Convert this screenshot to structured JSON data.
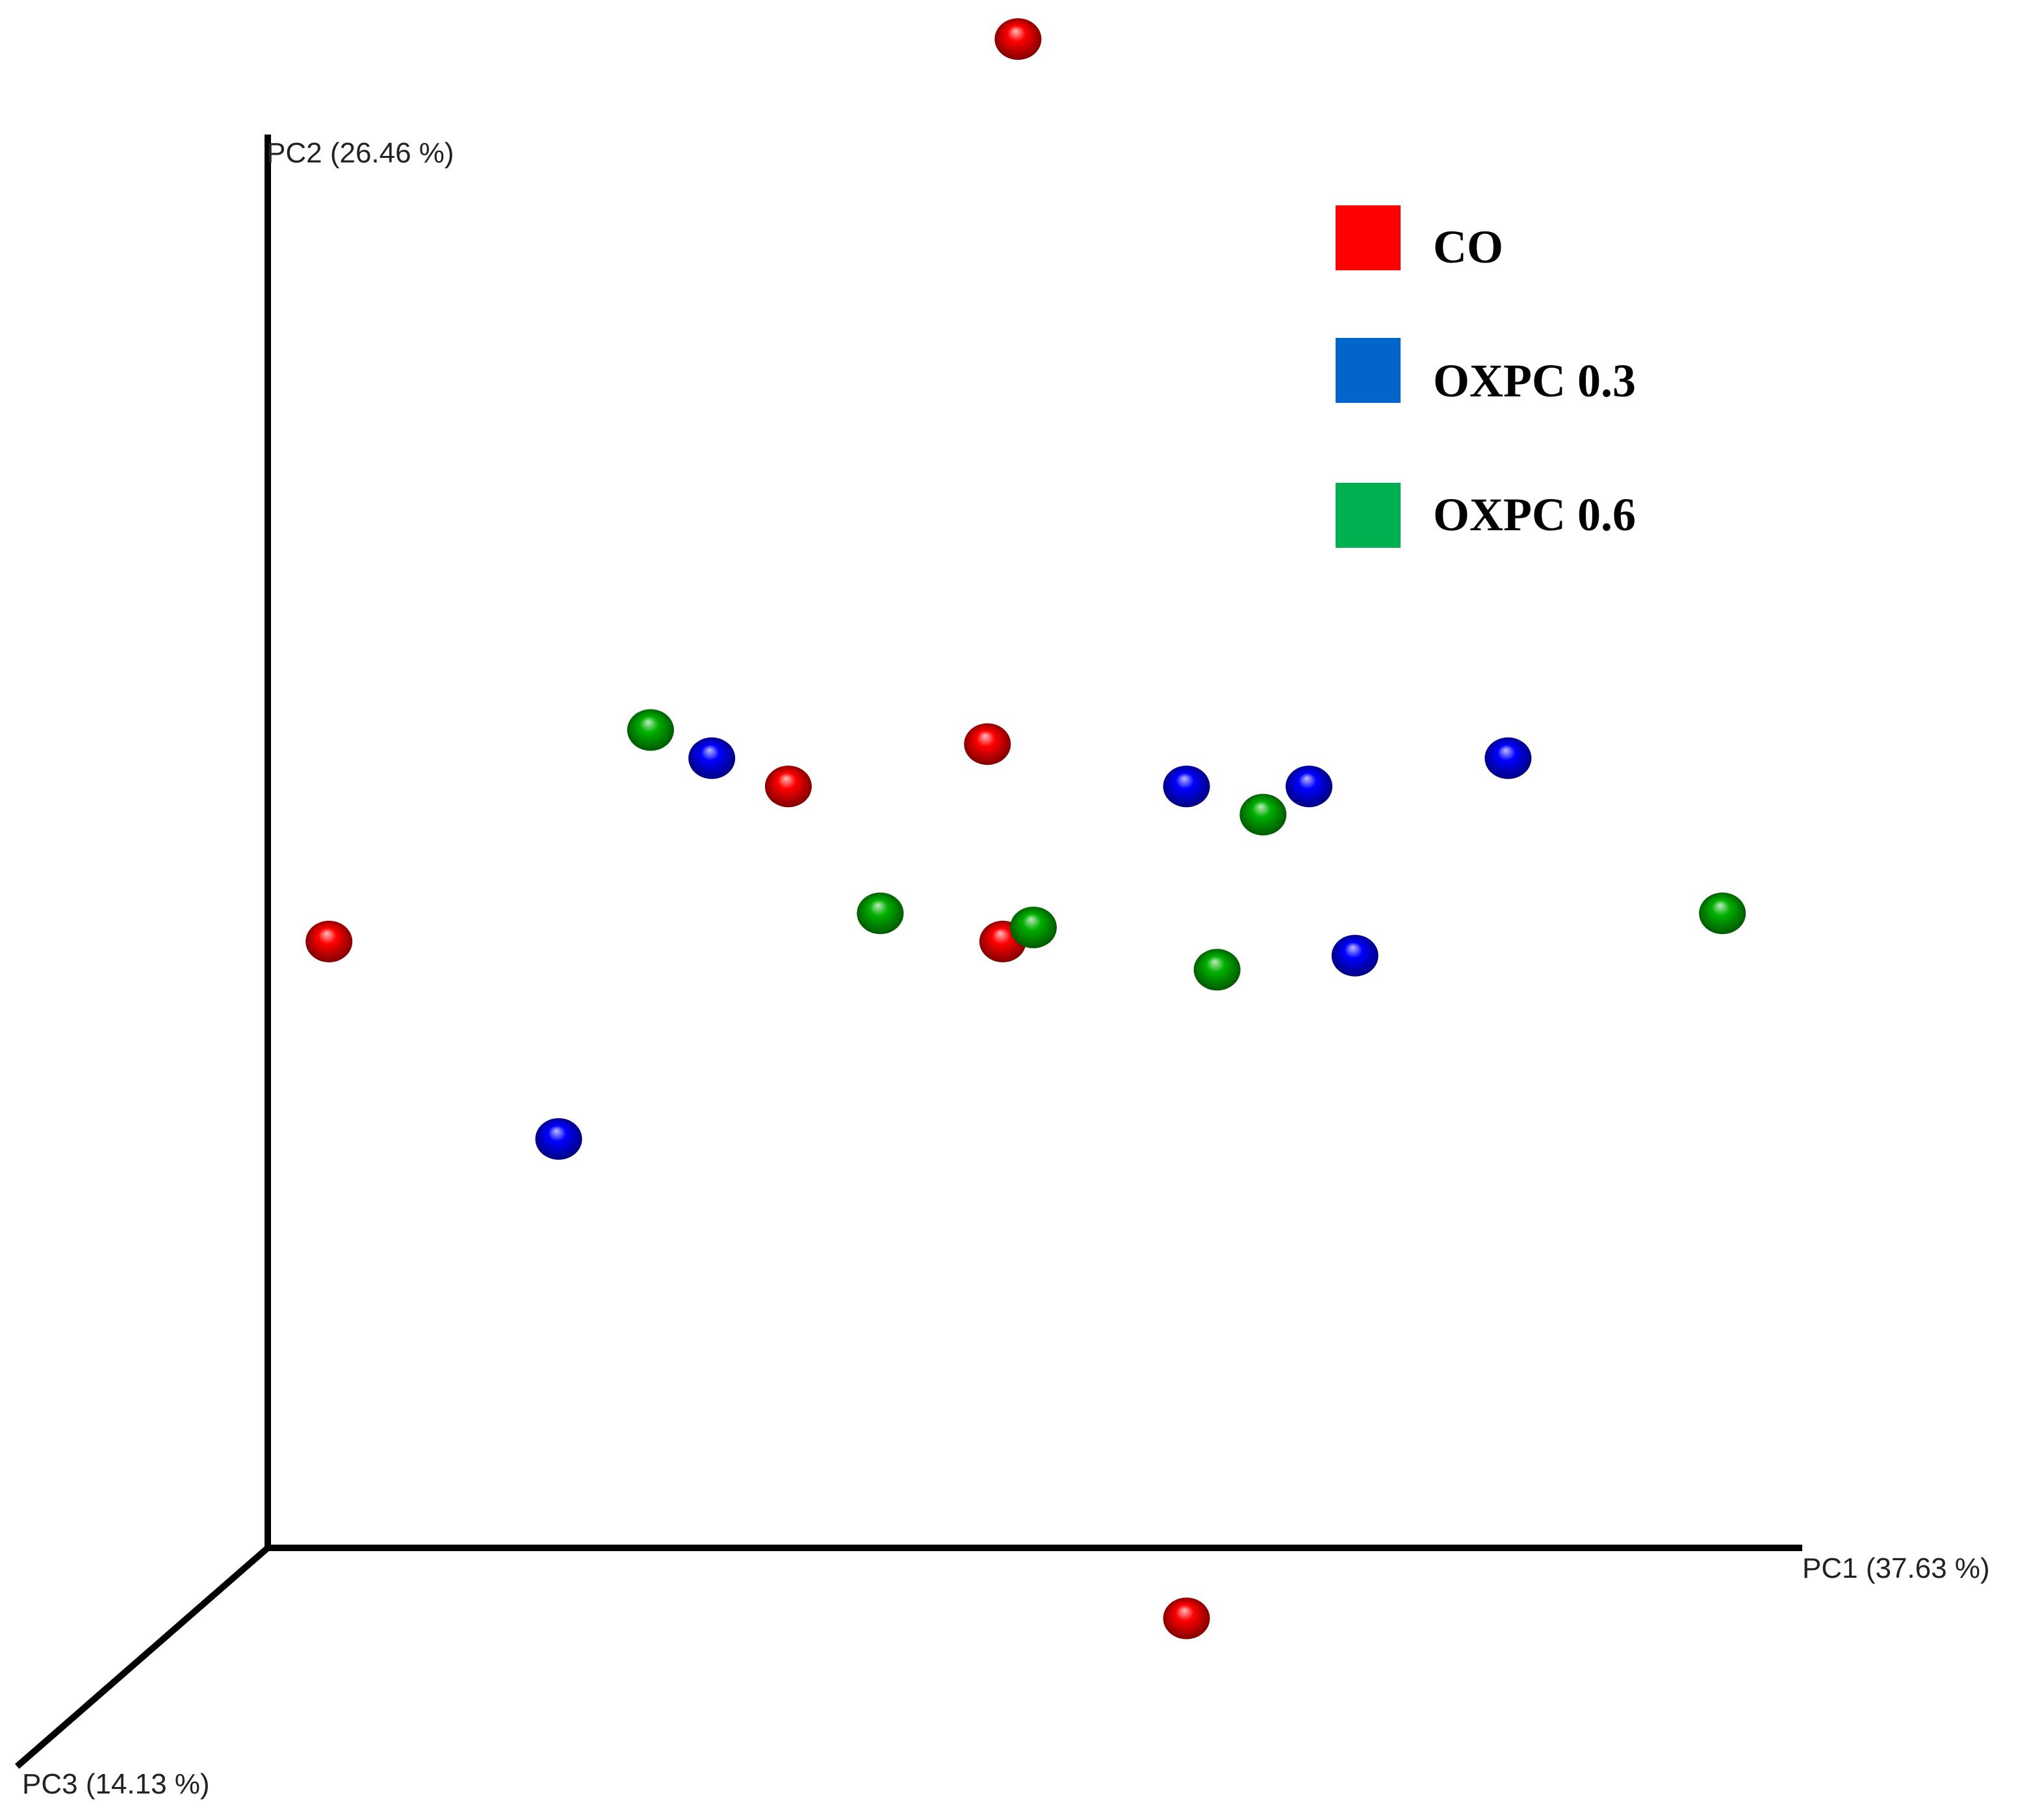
{
  "chart_data": {
    "type": "scatter",
    "projection": "3d",
    "axes": {
      "x": {
        "label": "PC1 (37.63 %)"
      },
      "y": {
        "label": "PC2 (26.46 %)"
      },
      "z": {
        "label": "PC3 (14.13 %)"
      }
    },
    "grid": false,
    "legend_position": "top-right",
    "series": [
      {
        "name": "CO",
        "color": "#ff0000",
        "points": [
          {
            "x": 0.49,
            "y": 1.07,
            "z": 0.0
          },
          {
            "x": 0.47,
            "y": 0.57,
            "z": 0.0
          },
          {
            "x": 0.34,
            "y": 0.54,
            "z": 0.0
          },
          {
            "x": 0.04,
            "y": 0.43,
            "z": 0.0
          },
          {
            "x": 0.48,
            "y": 0.43,
            "z": 0.0
          },
          {
            "x": 0.6,
            "y": -0.05,
            "z": 0.0
          }
        ]
      },
      {
        "name": "OXPC 0.3",
        "color": "#0000ff",
        "points": [
          {
            "x": 0.29,
            "y": 0.56,
            "z": 0.0
          },
          {
            "x": 0.6,
            "y": 0.54,
            "z": 0.0
          },
          {
            "x": 0.68,
            "y": 0.54,
            "z": 0.0
          },
          {
            "x": 0.81,
            "y": 0.56,
            "z": 0.0
          },
          {
            "x": 0.71,
            "y": 0.42,
            "z": 0.0
          },
          {
            "x": 0.19,
            "y": 0.29,
            "z": 0.0
          }
        ]
      },
      {
        "name": "OXPC 0.6",
        "color": "#00b000",
        "points": [
          {
            "x": 0.25,
            "y": 0.58,
            "z": 0.0
          },
          {
            "x": 0.65,
            "y": 0.52,
            "z": 0.0
          },
          {
            "x": 0.4,
            "y": 0.45,
            "z": 0.0
          },
          {
            "x": 0.5,
            "y": 0.44,
            "z": 0.0
          },
          {
            "x": 0.62,
            "y": 0.41,
            "z": 0.0
          },
          {
            "x": 0.95,
            "y": 0.45,
            "z": 0.0
          }
        ]
      }
    ]
  },
  "legend": {
    "items": [
      {
        "label": "CO",
        "color": "#ff0000"
      },
      {
        "label": "OXPC 0.3",
        "color": "#0066cc"
      },
      {
        "label": "OXPC 0.6",
        "color": "#00b050"
      }
    ]
  }
}
